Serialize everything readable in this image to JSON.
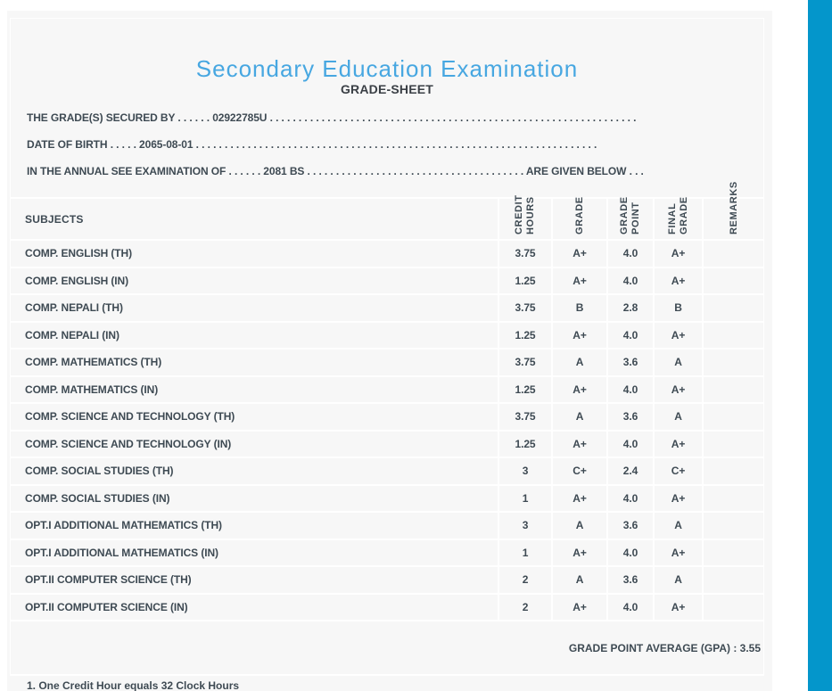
{
  "colors": {
    "title_blue": "#47A7E1",
    "accent_bar": "#0496CB",
    "text_dark": "#3E4A53",
    "panel_bg": "#F7F7F7",
    "border_white": "#FFFFFF"
  },
  "header": {
    "title": "Secondary Education Examination",
    "subtitle": "GRADE-SHEET"
  },
  "info_lines": [
    "THE GRADE(S) SECURED BY . . . . . . 02922785U . . . . . . . . . . . . . . . . . . . . . . . . . . . . . . . . . . . . . . . . . . . . . . . . . . . . . . . . . . . . . . . .",
    "DATE OF BIRTH . . . . . 2065-08-01 . . . . . . . . . . . . . . . . . . . . . . . . . . . . . . . . . . . . . . . . . . . . . . . . . . . . . . . . . . . . . . . . . . . . . .",
    "IN THE ANNUAL SEE EXAMINATION OF . . . . . . 2081 BS . . . . . . . . . . . . . . . . . . . . . . . . . . . . . . . . . . . . . . ARE GIVEN BELOW . . ."
  ],
  "table": {
    "subjects_header": "SUBJECTS",
    "columns": [
      "CREDIT HOURS",
      "GRADE",
      "GRADE POINT",
      "FINAL GRADE",
      "REMARKS"
    ],
    "rows": [
      {
        "subject": "COMP. ENGLISH (TH)",
        "credit_hours": "3.75",
        "grade": "A+",
        "grade_point": "4.0",
        "final_grade": "A+",
        "remarks": ""
      },
      {
        "subject": "COMP. ENGLISH (IN)",
        "credit_hours": "1.25",
        "grade": "A+",
        "grade_point": "4.0",
        "final_grade": "A+",
        "remarks": ""
      },
      {
        "subject": "COMP. NEPALI (TH)",
        "credit_hours": "3.75",
        "grade": "B",
        "grade_point": "2.8",
        "final_grade": "B",
        "remarks": ""
      },
      {
        "subject": "COMP. NEPALI (IN)",
        "credit_hours": "1.25",
        "grade": "A+",
        "grade_point": "4.0",
        "final_grade": "A+",
        "remarks": ""
      },
      {
        "subject": "COMP. MATHEMATICS (TH)",
        "credit_hours": "3.75",
        "grade": "A",
        "grade_point": "3.6",
        "final_grade": "A",
        "remarks": ""
      },
      {
        "subject": "COMP. MATHEMATICS (IN)",
        "credit_hours": "1.25",
        "grade": "A+",
        "grade_point": "4.0",
        "final_grade": "A+",
        "remarks": ""
      },
      {
        "subject": "COMP. SCIENCE AND TECHNOLOGY (TH)",
        "credit_hours": "3.75",
        "grade": "A",
        "grade_point": "3.6",
        "final_grade": "A",
        "remarks": ""
      },
      {
        "subject": "COMP. SCIENCE AND TECHNOLOGY (IN)",
        "credit_hours": "1.25",
        "grade": "A+",
        "grade_point": "4.0",
        "final_grade": "A+",
        "remarks": ""
      },
      {
        "subject": "COMP. SOCIAL STUDIES (TH)",
        "credit_hours": "3",
        "grade": "C+",
        "grade_point": "2.4",
        "final_grade": "C+",
        "remarks": ""
      },
      {
        "subject": "COMP. SOCIAL STUDIES (IN)",
        "credit_hours": "1",
        "grade": "A+",
        "grade_point": "4.0",
        "final_grade": "A+",
        "remarks": ""
      },
      {
        "subject": "OPT.I ADDITIONAL MATHEMATICS (TH)",
        "credit_hours": "3",
        "grade": "A",
        "grade_point": "3.6",
        "final_grade": "A",
        "remarks": ""
      },
      {
        "subject": "OPT.I ADDITIONAL MATHEMATICS (IN)",
        "credit_hours": "1",
        "grade": "A+",
        "grade_point": "4.0",
        "final_grade": "A+",
        "remarks": ""
      },
      {
        "subject": "OPT.II COMPUTER SCIENCE (TH)",
        "credit_hours": "2",
        "grade": "A",
        "grade_point": "3.6",
        "final_grade": "A",
        "remarks": ""
      },
      {
        "subject": "OPT.II COMPUTER SCIENCE (IN)",
        "credit_hours": "2",
        "grade": "A+",
        "grade_point": "4.0",
        "final_grade": "A+",
        "remarks": ""
      }
    ],
    "gpa_label": "GRADE POINT AVERAGE (GPA) : 3.55"
  },
  "footnote": "1. One Credit Hour equals 32 Clock Hours"
}
